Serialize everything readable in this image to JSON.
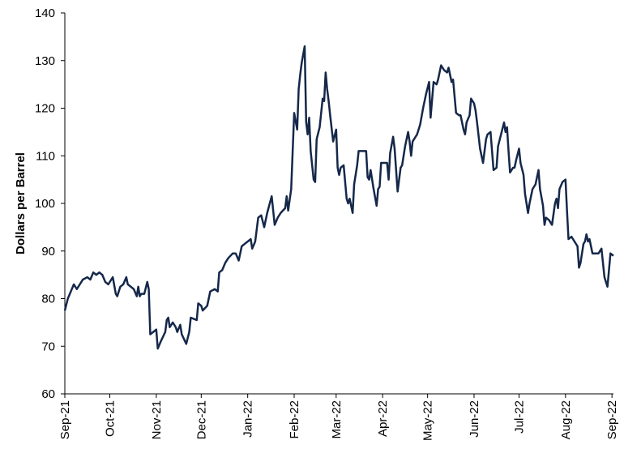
{
  "chart_data": {
    "type": "line",
    "ylabel": "Dollars per Barrel",
    "xlim": [
      0,
      366
    ],
    "xticks": [
      {
        "value": 0,
        "label": "Sep-21"
      },
      {
        "value": 30,
        "label": "Oct-21"
      },
      {
        "value": 61,
        "label": "Nov-21"
      },
      {
        "value": 91,
        "label": "Dec-21"
      },
      {
        "value": 122,
        "label": "Jan-22"
      },
      {
        "value": 153,
        "label": "Feb-22"
      },
      {
        "value": 181,
        "label": "Mar-22"
      },
      {
        "value": 212,
        "label": "Apr-22"
      },
      {
        "value": 242,
        "label": "May-22"
      },
      {
        "value": 273,
        "label": "Jun-22"
      },
      {
        "value": 303,
        "label": "Jul-22"
      },
      {
        "value": 334,
        "label": "Aug-22"
      },
      {
        "value": 365,
        "label": "Sep-22"
      }
    ],
    "ylim": [
      60,
      140
    ],
    "yticks": [
      60,
      70,
      80,
      90,
      100,
      110,
      120,
      130,
      140
    ],
    "grid": false,
    "series": [
      {
        "color": "#15284a",
        "x": [
          0,
          2,
          4,
          6,
          8,
          10,
          12,
          15,
          17,
          19,
          21,
          23,
          25,
          27,
          29,
          32,
          34,
          35,
          37,
          39,
          41,
          42,
          44,
          46,
          48,
          49,
          50,
          51,
          53,
          55,
          56,
          57,
          59,
          61,
          62,
          64,
          67,
          68,
          69,
          70,
          72,
          74,
          75,
          77,
          78,
          81,
          83,
          84,
          88,
          89,
          91,
          92,
          95,
          97,
          100,
          102,
          103,
          105,
          107,
          109,
          112,
          114,
          116,
          118,
          120,
          122,
          124,
          125,
          127,
          129,
          131,
          133,
          135,
          138,
          140,
          142,
          144,
          147,
          148,
          149,
          151,
          153,
          155,
          156,
          157,
          158,
          160,
          161,
          162,
          163,
          164,
          166,
          167,
          168,
          170,
          172,
          173,
          174,
          175,
          176,
          177,
          179,
          181,
          182,
          183,
          184,
          186,
          188,
          189,
          190,
          192,
          193,
          195,
          196,
          201,
          202,
          203,
          204,
          206,
          208,
          209,
          210,
          211,
          215,
          216,
          217,
          219,
          220,
          222,
          224,
          225,
          227,
          229,
          230,
          231,
          232,
          235,
          237,
          239,
          241,
          243,
          244,
          246,
          248,
          249,
          251,
          253,
          255,
          256,
          258,
          259,
          261,
          263,
          264,
          266,
          267,
          268,
          270,
          271,
          273,
          274,
          275,
          277,
          279,
          281,
          282,
          284,
          286,
          288,
          289,
          291,
          293,
          294,
          295,
          296,
          297,
          299,
          300,
          301,
          303,
          304,
          306,
          307,
          309,
          310,
          312,
          314,
          316,
          317,
          319,
          320,
          321,
          323,
          325,
          327,
          328,
          329,
          330,
          332,
          334,
          335,
          336,
          338,
          340,
          342,
          343,
          344,
          346,
          347,
          348,
          349,
          350,
          352,
          354,
          356,
          358,
          360,
          361,
          362,
          364,
          366
        ],
        "values": [
          77.5,
          80,
          81.5,
          83,
          82,
          83,
          84,
          84.5,
          84,
          85.5,
          85,
          85.5,
          85,
          83.5,
          83,
          84.5,
          81,
          80.5,
          82.5,
          83,
          84.5,
          83,
          82.5,
          82,
          80.5,
          82.5,
          80.5,
          81,
          81,
          83.5,
          82,
          72.5,
          73,
          73.5,
          69.5,
          71,
          73,
          75.5,
          76,
          74,
          75,
          74,
          73,
          74.5,
          72.5,
          70.5,
          73,
          76,
          75.5,
          79,
          78.5,
          77.5,
          78.5,
          81.5,
          82,
          81.5,
          85.5,
          86,
          87.5,
          88.5,
          89.5,
          89.5,
          88,
          91,
          91.5,
          92,
          92.5,
          90.5,
          92,
          97,
          97.5,
          95,
          98,
          101.5,
          95.5,
          97,
          98,
          99,
          101.5,
          98.5,
          103,
          119,
          115.5,
          124,
          127,
          129.5,
          133,
          117,
          114.5,
          118,
          111,
          105,
          104.5,
          113.5,
          116,
          122,
          121.5,
          127.5,
          124,
          121.5,
          118.5,
          113,
          115.5,
          107.5,
          106,
          107.5,
          108,
          101,
          100,
          101,
          98,
          104,
          108,
          111,
          111,
          105.5,
          105,
          107,
          103,
          99.5,
          103,
          103.5,
          108.5,
          108.5,
          105,
          110.5,
          114,
          111.5,
          102.5,
          107.5,
          108,
          112,
          115,
          113,
          110,
          113,
          114.5,
          116.5,
          120,
          123,
          125.5,
          118,
          125.5,
          125,
          126,
          129,
          128,
          127.5,
          128.5,
          125.5,
          126,
          119,
          118.5,
          118.5,
          115.5,
          114.5,
          117,
          118.5,
          122,
          121,
          119.5,
          117,
          111.5,
          108.5,
          113.5,
          114.5,
          115,
          107,
          107.5,
          112,
          114.5,
          117,
          115,
          116,
          111,
          106.5,
          107.5,
          107.5,
          109,
          111.5,
          108.5,
          106,
          102,
          98,
          100,
          103,
          104,
          107,
          103,
          99.5,
          95.5,
          97,
          96.5,
          95.5,
          100,
          101,
          99,
          103,
          104.5,
          105,
          98.5,
          92.5,
          93,
          92,
          91,
          86.5,
          87.5,
          91.5,
          92,
          93.5,
          92,
          92.5,
          89.5,
          89.5,
          89.5,
          90.5,
          84.5,
          83.5,
          82.5,
          89.5,
          89
        ]
      }
    ]
  }
}
